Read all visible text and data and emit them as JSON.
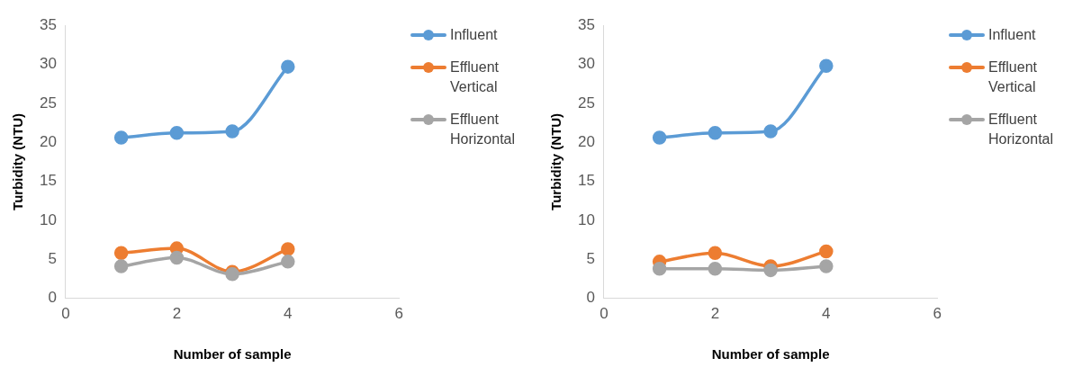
{
  "chart_data": [
    {
      "type": "line",
      "xlabel": "Number of sample",
      "ylabel": "Turbidity (NTU)",
      "x": [
        1,
        2,
        3,
        4
      ],
      "xlim": [
        0,
        6
      ],
      "xticks": [
        0,
        2,
        4,
        6
      ],
      "ylim": [
        0,
        35
      ],
      "yticks": [
        0,
        5,
        10,
        15,
        20,
        25,
        30,
        35
      ],
      "grid": false,
      "legend": "top right",
      "marker": "circle",
      "series": [
        {
          "name": "Influent",
          "color": "#5b9bd5",
          "values": [
            20.6,
            21.2,
            21.4,
            29.7
          ]
        },
        {
          "name": "Effluent Vertical",
          "color": "#ed7d31",
          "values": [
            5.8,
            6.4,
            3.4,
            6.3
          ]
        },
        {
          "name": "Effluent Horizontal",
          "color": "#a5a5a5",
          "values": [
            4.1,
            5.2,
            3.1,
            4.7
          ]
        }
      ]
    },
    {
      "type": "line",
      "xlabel": "Number of sample",
      "ylabel": "Turbidity (NTU)",
      "x": [
        1,
        2,
        3,
        4
      ],
      "xlim": [
        0,
        6
      ],
      "xticks": [
        0,
        2,
        4,
        6
      ],
      "ylim": [
        0,
        35
      ],
      "yticks": [
        0,
        5,
        10,
        15,
        20,
        25,
        30,
        35
      ],
      "grid": false,
      "legend": "top right",
      "marker": "circle",
      "series": [
        {
          "name": "Influent",
          "color": "#5b9bd5",
          "values": [
            20.6,
            21.2,
            21.4,
            29.8
          ]
        },
        {
          "name": "Effluent Vertical",
          "color": "#ed7d31",
          "values": [
            4.7,
            5.8,
            4.1,
            6.0
          ]
        },
        {
          "name": "Effluent Horizontal",
          "color": "#a5a5a5",
          "values": [
            3.8,
            3.8,
            3.6,
            4.1
          ]
        }
      ]
    }
  ]
}
